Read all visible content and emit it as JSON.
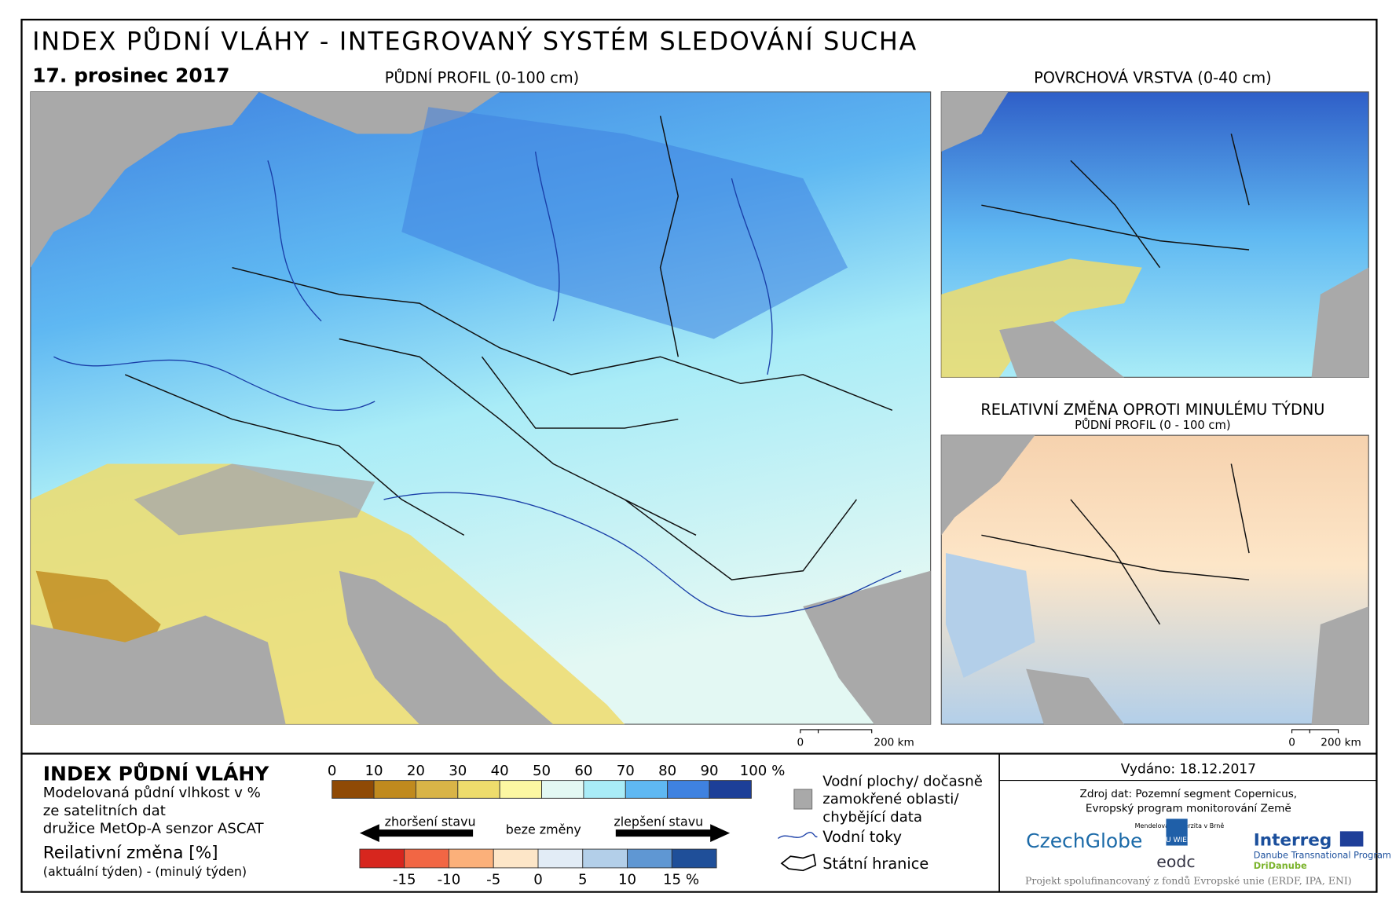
{
  "header": {
    "title": "INDEX PŮDNÍ VLÁHY - INTEGROVANÝ SYSTÉM SLEDOVÁNÍ SUCHA",
    "date": "17. prosinec 2017"
  },
  "maps": {
    "main": {
      "title": "PŮDNÍ PROFIL (0-100 cm)",
      "scale": [
        "0",
        "200 km"
      ]
    },
    "surface": {
      "title": "POVRCHOVÁ VRSTVA (0-40 cm)"
    },
    "change": {
      "title": "RELATIVNÍ ZMĚNA OPROTI MINULÉMU TÝDNU",
      "subtitle": "PŮDNÍ PROFIL (0 - 100 cm)",
      "scale": [
        "0",
        "200 km"
      ]
    }
  },
  "legend": {
    "title": "INDEX PŮDNÍ VLÁHY",
    "description": [
      "Modelovaná půdní vlhkost v %",
      "ze satelitních dat",
      "družice MetOp-A senzor ASCAT"
    ],
    "change_title": "Reilativní změna [%]",
    "change_description": "(aktuální týden) - (minulý týden)",
    "moisture_scale": {
      "labels": [
        "0",
        "10",
        "20",
        "30",
        "40",
        "50",
        "60",
        "70",
        "80",
        "90",
        "100 %"
      ],
      "colors": [
        "#8f4a05",
        "#c08a1e",
        "#d9b447",
        "#eedc6c",
        "#fcf7a2",
        "#e3f8f3",
        "#a9ecf7",
        "#5fb8f2",
        "#3f82e0",
        "#1d3f98"
      ]
    },
    "change_scale": {
      "worse": "zhoršení stavu",
      "same": "beze změny",
      "better": "zlepšení stavu",
      "labels": [
        "-15",
        "-10",
        "-5",
        "0",
        "5",
        "10",
        "15 %"
      ],
      "colors": [
        "#d7261e",
        "#f26644",
        "#fbb07a",
        "#fde6c8",
        "#e2ecf6",
        "#b3cfe9",
        "#5f97d3",
        "#1f4f99"
      ]
    },
    "symbols": {
      "water": [
        "Vodní plochy/ dočasně",
        "zamokřené oblasti/",
        "chybějící data"
      ],
      "rivers": "Vodní toky",
      "borders": "Státní hranice"
    }
  },
  "footer": {
    "issued": "Vydáno: 18.12.2017",
    "source": [
      "Zdroj dat: Pozemní segment Copernicus,",
      "Evropský program monitorování Země"
    ],
    "logos": {
      "czechglobe": "CzechGlobe",
      "mendel": "Mendelova univerzita v Brně",
      "tuwien": "TU WIEN",
      "eodc": "eodc",
      "interreg": "Interreg",
      "programme": "Danube Transnational Programme",
      "dridanube": "DriDanube"
    },
    "funding": "Projekt spolufinancovaný z fondů Evropské unie (ERDF, IPA, ENI)"
  }
}
